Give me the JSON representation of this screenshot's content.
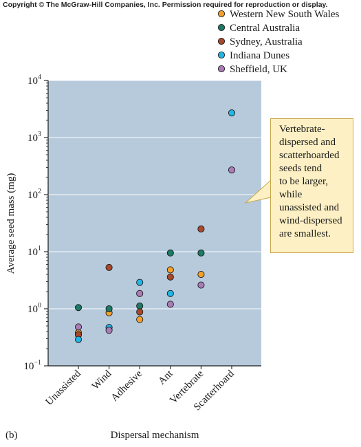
{
  "copyright": "Copyright © The McGraw-Hill Companies, Inc. Permission required for reproduction or display.",
  "panel_label": "(b)",
  "callout": {
    "lines": [
      "Vertebrate-",
      "dispersed and",
      "scatterhoarded",
      "seeds tend",
      "to be larger,",
      "while",
      "unassisted and",
      "wind-dispersed",
      "are smallest."
    ]
  },
  "colors": {
    "plot_background": "#b6cadb",
    "gridline": "#ffffff",
    "callout_background": "#fdf0c4",
    "callout_border": "#c9a74c"
  },
  "chart_data": {
    "type": "scatter",
    "xlabel": "Dispersal mechanism",
    "ylabel": "Average seed mass (mg)",
    "categories": [
      "Unassisted",
      "Wind",
      "Adhesive",
      "Ant",
      "Vertebrate",
      "Scatterhoard"
    ],
    "y_scale": "log",
    "ylim": [
      0.1,
      10000
    ],
    "y_ticks": [
      {
        "value": 0.1,
        "base": "10",
        "exp": "−1"
      },
      {
        "value": 1,
        "base": "10",
        "exp": "0"
      },
      {
        "value": 10,
        "base": "10",
        "exp": "1"
      },
      {
        "value": 100,
        "base": "10",
        "exp": "2"
      },
      {
        "value": 1000,
        "base": "10",
        "exp": "3"
      },
      {
        "value": 10000,
        "base": "10",
        "exp": "4"
      }
    ],
    "grid": true,
    "legend_position": "top-right",
    "series": [
      {
        "name": "Western New South Wales",
        "color": "#f4a12c",
        "points": [
          {
            "x": "Unassisted",
            "y": 0.38
          },
          {
            "x": "Wind",
            "y": 0.85
          },
          {
            "x": "Adhesive",
            "y": 0.65
          },
          {
            "x": "Ant",
            "y": 4.8
          },
          {
            "x": "Vertebrate",
            "y": 4.0
          }
        ]
      },
      {
        "name": "Central Australia",
        "color": "#1c7a66",
        "points": [
          {
            "x": "Unassisted",
            "y": 1.05
          },
          {
            "x": "Wind",
            "y": 1.0
          },
          {
            "x": "Adhesive",
            "y": 1.12
          },
          {
            "x": "Ant",
            "y": 9.5
          },
          {
            "x": "Vertebrate",
            "y": 9.5
          }
        ]
      },
      {
        "name": "Sydney, Australia",
        "color": "#a9482a",
        "points": [
          {
            "x": "Unassisted",
            "y": 0.35
          },
          {
            "x": "Wind",
            "y": 5.3
          },
          {
            "x": "Adhesive",
            "y": 0.88
          },
          {
            "x": "Ant",
            "y": 3.6
          },
          {
            "x": "Vertebrate",
            "y": 25
          }
        ]
      },
      {
        "name": "Indiana Dunes",
        "color": "#23b5e6",
        "points": [
          {
            "x": "Unassisted",
            "y": 0.29
          },
          {
            "x": "Wind",
            "y": 0.47
          },
          {
            "x": "Adhesive",
            "y": 2.9
          },
          {
            "x": "Ant",
            "y": 1.85
          },
          {
            "x": "Scatterhoard",
            "y": 2700
          }
        ]
      },
      {
        "name": "Sheffield, UK",
        "color": "#ab7cb6",
        "points": [
          {
            "x": "Unassisted",
            "y": 0.48
          },
          {
            "x": "Wind",
            "y": 0.42
          },
          {
            "x": "Adhesive",
            "y": 1.85
          },
          {
            "x": "Ant",
            "y": 1.2
          },
          {
            "x": "Vertebrate",
            "y": 2.6
          },
          {
            "x": "Scatterhoard",
            "y": 270
          }
        ]
      }
    ]
  }
}
